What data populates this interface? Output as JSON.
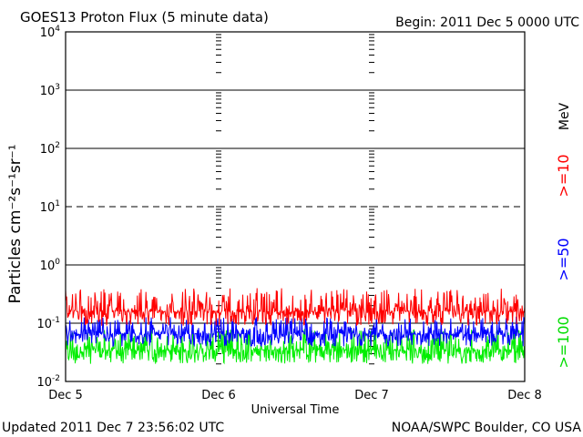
{
  "chart_data": {
    "type": "line",
    "title": "GOES13 Proton Flux (5 minute data)",
    "begin_label": "Begin: 2011 Dec 5 0000 UTC",
    "xlabel": "Universal Time",
    "ylabel": "Particles cm⁻²s⁻¹sr⁻¹",
    "y_scale": "log",
    "ylim": [
      0.01,
      10000
    ],
    "x_ticks": [
      "Dec 5",
      "Dec 6",
      "Dec 7",
      "Dec 8"
    ],
    "y_ticks": [
      {
        "base": "10",
        "exp": "4"
      },
      {
        "base": "10",
        "exp": "3"
      },
      {
        "base": "10",
        "exp": "2"
      },
      {
        "base": "10",
        "exp": "1"
      },
      {
        "base": "10",
        "exp": "0"
      },
      {
        "base": "10",
        "exp": "-1"
      },
      {
        "base": "10",
        "exp": "-2"
      }
    ],
    "gridlines": [
      {
        "value": 1000,
        "style": "solid"
      },
      {
        "value": 100,
        "style": "solid"
      },
      {
        "value": 10,
        "style": "dashed"
      },
      {
        "value": 1,
        "style": "solid"
      },
      {
        "value": 0.1,
        "style": "solid"
      }
    ],
    "series": [
      {
        "name": ">=10",
        "color": "#ff0000",
        "typical_value": 0.16,
        "range": [
          0.09,
          0.4
        ]
      },
      {
        "name": ">=50",
        "color": "#0000ff",
        "typical_value": 0.065,
        "range": [
          0.04,
          0.13
        ]
      },
      {
        "name": ">=100",
        "color": "#00ee00",
        "typical_value": 0.035,
        "range": [
          0.02,
          0.08
        ]
      }
    ],
    "legend_unit": "MeV",
    "legend_placement": "right"
  },
  "footer": {
    "updated": "Updated 2011 Dec  7 23:56:02 UTC",
    "credit": "NOAA/SWPC Boulder, CO USA"
  }
}
